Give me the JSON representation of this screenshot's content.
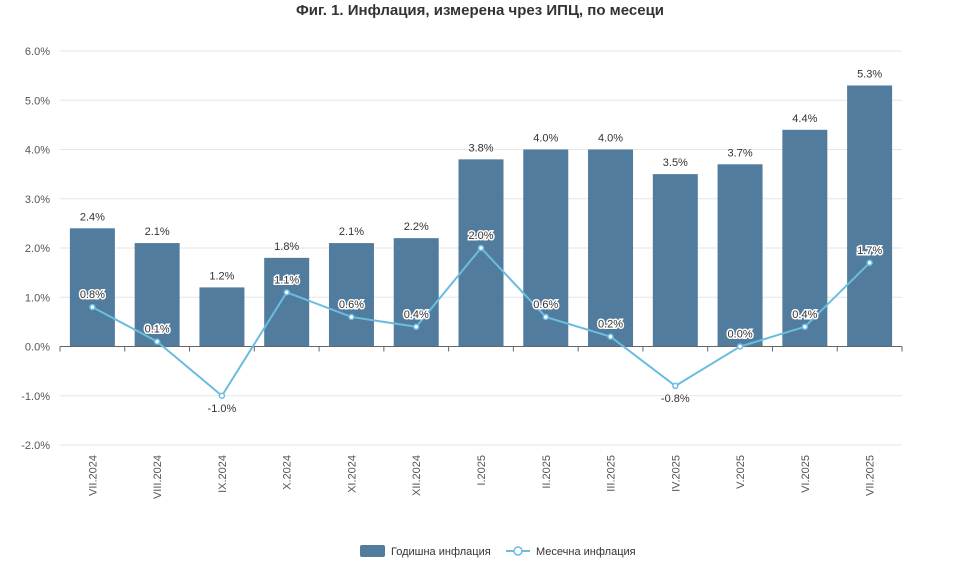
{
  "chart_data": {
    "type": "bar",
    "title": "Фиг. 1. Инфлация, измерена чрез ИПЦ, по месеци",
    "categories": [
      "VII.2024",
      "VIII.2024",
      "IX.2024",
      "X.2024",
      "XI.2024",
      "XII.2024",
      "I.2025",
      "II.2025",
      "III.2025",
      "IV.2025",
      "V.2025",
      "VI.2025",
      "VII.2025"
    ],
    "series": [
      {
        "name": "Годишна инфлация",
        "type": "bar",
        "color": "#527c9e",
        "values": [
          2.4,
          2.1,
          1.2,
          1.8,
          2.1,
          2.2,
          3.8,
          4.0,
          4.0,
          3.5,
          3.7,
          4.4,
          5.3
        ],
        "labels": [
          "2.4%",
          "2.1%",
          "1.2%",
          "1.8%",
          "2.1%",
          "2.2%",
          "3.8%",
          "4.0%",
          "4.0%",
          "3.5%",
          "3.7%",
          "4.4%",
          "5.3%"
        ]
      },
      {
        "name": "Месечна инфлация",
        "type": "line",
        "color": "#6bbde0",
        "values": [
          0.8,
          0.1,
          -1.0,
          1.1,
          0.6,
          0.4,
          2.0,
          0.6,
          0.2,
          -0.8,
          0.0,
          0.4,
          1.7
        ],
        "labels": [
          "0.8%",
          "0.1%",
          "-1.0%",
          "1.1%",
          "0.6%",
          "0.4%",
          "2.0%",
          "0.6%",
          "0.2%",
          "-0.8%",
          "0.0%",
          "0.4%",
          "1.7%"
        ]
      }
    ],
    "ylim": [
      -2.0,
      6.0
    ],
    "yticks": [
      6.0,
      5.0,
      4.0,
      3.0,
      2.0,
      1.0,
      0.0,
      -1.0,
      -2.0
    ],
    "ytick_labels": [
      "6.0%",
      "5.0%",
      "4.0%",
      "3.0%",
      "2.0%",
      "1.0%",
      "0.0%",
      "-1.0%",
      "-2.0%"
    ],
    "grid": true,
    "legend_position": "bottom",
    "xlabel": "",
    "ylabel": ""
  }
}
